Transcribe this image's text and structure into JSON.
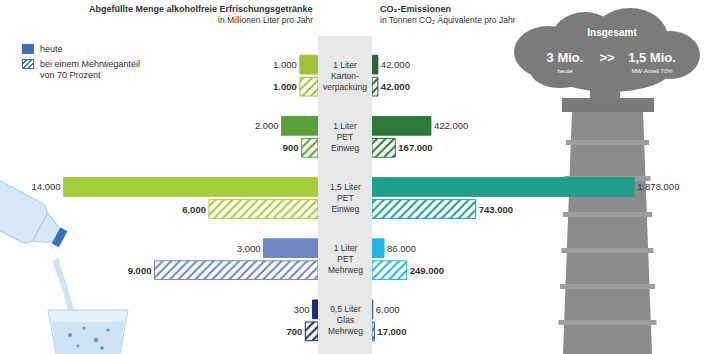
{
  "chart_data": [
    {
      "type": "bar",
      "orientation": "horizontal",
      "title": "Abgefüllte Menge alkoholfreie Erfrischungsgetränke",
      "subtitle": "in Millionen Liter pro Jahr",
      "categories": [
        "1 Liter\nKarton-\nverpackung",
        "1 Liter\nPET\nEinweg",
        "1,5 Liter\nPET\nEinweg",
        "1 Liter\nPET\nMehrweg",
        "0,5 Liter\nGlas\nMehrweg"
      ],
      "series": [
        {
          "name": "heute",
          "marker": "solid",
          "color": "#3d6fb5",
          "values": [
            1000,
            2000,
            14000,
            3000,
            300
          ],
          "value_labels": [
            "1.000",
            "2.000",
            "14.000",
            "3.000",
            "300"
          ],
          "colors": [
            "#a3c23b",
            "#5a9f3c",
            "#a6cd3a",
            "#6f87c3",
            "#1f2d73"
          ]
        },
        {
          "name": "bei einem Mehrweganteil von 70 Prozent",
          "marker": "hatched",
          "color": "#3d6fb5",
          "values": [
            1000,
            900,
            6000,
            9000,
            700
          ],
          "value_labels": [
            "1.000",
            "900",
            "6.000",
            "9.000",
            "700"
          ],
          "colors": [
            "#a3c23b",
            "#5a9f3c",
            "#a6cd3a",
            "#6f87c3",
            "#1f2d73"
          ]
        }
      ],
      "xlim": [
        0,
        17500
      ],
      "data_labels": true,
      "tick_labels": false,
      "legend": "top left"
    },
    {
      "type": "bar",
      "orientation": "horizontal",
      "title": "CO₂-Emissionen",
      "subtitle": "in Tonnen CO₂ Äquivalente pro Jahr",
      "categories": [
        "1 Liter\nKarton-\nverpackung",
        "1 Liter\nPET\nEinweg",
        "1,5 Liter\nPET\nEinweg",
        "1 Liter\nPET\nMehrweg",
        "0,5 Liter\nGlas\nMehrweg"
      ],
      "series": [
        {
          "name": "heute",
          "marker": "solid",
          "values": [
            42000,
            422000,
            1878000,
            86000,
            6000
          ],
          "value_labels": [
            "42.000",
            "422.000",
            "1.878.000",
            "86.000",
            "6.000"
          ],
          "colors": [
            "#2f5f3a",
            "#2e7a3c",
            "#1f9e8a",
            "#25b4e4",
            "#3a5fb0"
          ]
        },
        {
          "name": "bei einem Mehrweganteil von 70 Prozent",
          "marker": "hatched",
          "values": [
            42000,
            167000,
            743000,
            249000,
            17000
          ],
          "value_labels": [
            "42.000",
            "167.000",
            "743.000",
            "249.000",
            "17.000"
          ],
          "colors": [
            "#2f5f3a",
            "#2e7a3c",
            "#1f9e8a",
            "#25b4e4",
            "#3a5fb0"
          ]
        }
      ],
      "xlim": [
        0,
        2400000
      ],
      "data_labels": true,
      "tick_labels": false
    }
  ],
  "totals": {
    "title": "Insgesamt",
    "today": "3 Mio.",
    "today_caption": "heute",
    "operator": ">>",
    "reusable": "1,5 Mio.",
    "reusable_caption": "MW-Anteil 70%"
  }
}
